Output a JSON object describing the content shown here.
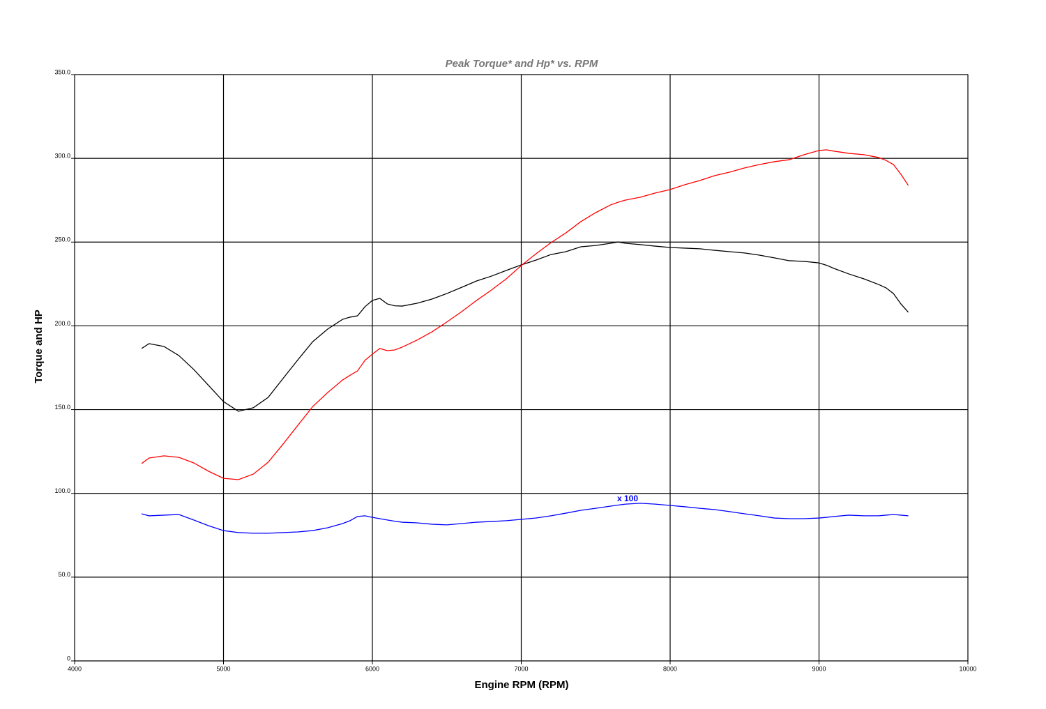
{
  "chart_data": {
    "type": "line",
    "title": "Peak Torque* and Hp* vs. RPM",
    "x_label": "Engine RPM (RPM)",
    "y_label": "Torque and HP",
    "annotation": "x 100",
    "grid": true,
    "xlim": [
      4000,
      10000
    ],
    "xticks": [
      4000,
      5000,
      6000,
      7000,
      8000,
      9000,
      10000
    ],
    "ylim": [
      0,
      350
    ],
    "yticks": [
      0,
      {
        "value": 50,
        "label": "50.0"
      },
      {
        "value": 100,
        "label": "100.0"
      },
      {
        "value": 150,
        "label": "150.0"
      },
      {
        "value": 200,
        "label": "200.0"
      },
      {
        "value": 250,
        "label": "250.0"
      },
      {
        "value": 300,
        "label": "300.0"
      },
      {
        "value": 350,
        "label": "350.0"
      }
    ],
    "x": [
      4450,
      4500,
      4600,
      4700,
      4800,
      4900,
      5000,
      5100,
      5200,
      5300,
      5400,
      5500,
      5600,
      5700,
      5800,
      5850,
      5900,
      5950,
      6000,
      6050,
      6100,
      6150,
      6200,
      6300,
      6400,
      6500,
      6600,
      6700,
      6800,
      6900,
      7000,
      7100,
      7200,
      7300,
      7400,
      7500,
      7600,
      7650,
      7700,
      7800,
      7900,
      8000,
      8100,
      8200,
      8300,
      8400,
      8500,
      8600,
      8700,
      8800,
      8900,
      9000,
      9050,
      9100,
      9200,
      9300,
      9400,
      9450,
      9500,
      9550,
      9600
    ],
    "series": [
      {
        "color": "#000000",
        "values": [
          186.5,
          189.4,
          187.7,
          182.3,
          174,
          164.4,
          154.8,
          149,
          151.1,
          157.3,
          168.6,
          179.8,
          190.6,
          198.1,
          203.9,
          205.2,
          206,
          211.4,
          215.2,
          216.4,
          213.1,
          212,
          211.8,
          213.5,
          216,
          219.3,
          223,
          226.8,
          229.7,
          233.1,
          236.4,
          239.3,
          242.6,
          244.3,
          247.2,
          248,
          249.3,
          250.1,
          249.3,
          248.5,
          247.6,
          246.8,
          246.4,
          246,
          245.1,
          244.3,
          243.5,
          242.2,
          240.6,
          238.9,
          238.5,
          237.6,
          236.2,
          234.3,
          231,
          228.1,
          224.7,
          222.7,
          219.3,
          213.1,
          208.1
        ]
      },
      {
        "color": "#ff0000",
        "values": [
          117.8,
          121.1,
          122.4,
          121.5,
          118.2,
          113.2,
          109,
          108.2,
          111.5,
          118.6,
          129.4,
          140.7,
          151.9,
          160.2,
          167.7,
          170.5,
          173.1,
          179.4,
          183.1,
          186.5,
          185.2,
          185.6,
          187.3,
          191.5,
          196.4,
          202.3,
          208.5,
          215.2,
          221.4,
          228.1,
          236,
          243.1,
          249.7,
          255.5,
          262.2,
          267.6,
          272.2,
          273.8,
          275.1,
          276.8,
          279.3,
          281.4,
          284.3,
          286.8,
          289.7,
          291.8,
          294.3,
          296.3,
          298,
          299.2,
          302.2,
          304.7,
          305.1,
          304.3,
          303,
          302.2,
          300.5,
          298.8,
          296.3,
          290.5,
          283.8
        ]
      },
      {
        "color": "#0000ff",
        "values": [
          87.8,
          86.6,
          87,
          87.4,
          84.1,
          80.7,
          77.8,
          76.6,
          76.2,
          76.2,
          76.6,
          77,
          77.8,
          79.5,
          82,
          83.7,
          86.2,
          86.6,
          85.7,
          84.9,
          84.1,
          83.4,
          82.8,
          82.4,
          81.6,
          81.2,
          82,
          82.8,
          83.2,
          83.7,
          84.5,
          85.3,
          86.6,
          88.2,
          89.9,
          91.1,
          92.4,
          93,
          93.6,
          94.1,
          93.6,
          92.8,
          92,
          91.1,
          90.3,
          89.1,
          87.8,
          86.6,
          85.3,
          84.9,
          84.9,
          85.3,
          85.7,
          86.2,
          87,
          86.6,
          86.6,
          87,
          87.4,
          87,
          86.6
        ]
      }
    ]
  }
}
